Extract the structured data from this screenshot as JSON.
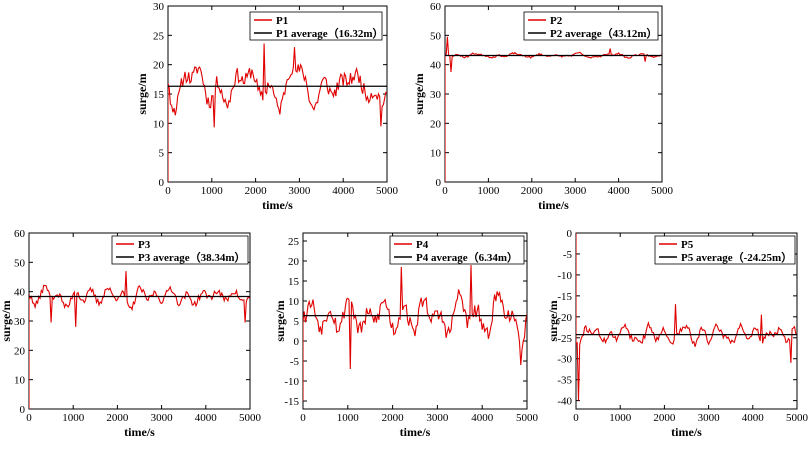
{
  "chart_data": [
    {
      "type": "line",
      "panel": "P1",
      "xlabel": "time/s",
      "ylabel": "surge/m",
      "xlim": [
        0,
        5000
      ],
      "ylim": [
        0,
        30
      ],
      "xticks": [
        0,
        1000,
        2000,
        3000,
        4000,
        5000
      ],
      "yticks": [
        0,
        5,
        10,
        15,
        20,
        25,
        30
      ],
      "legend_position": "top-right",
      "series": [
        {
          "name": "P1",
          "color": "#e00000",
          "start": 0,
          "mean": 16.32,
          "amplitude": 4.0,
          "extremes": [
            [
              2200,
              23.6
            ],
            [
              2900,
              23.0
            ],
            [
              4850,
              9.5
            ],
            [
              1050,
              9.3
            ]
          ],
          "seed": 11
        },
        {
          "name": "P1 average（16.32m）",
          "color": "#000000",
          "constant": 16.32
        }
      ]
    },
    {
      "type": "line",
      "panel": "P2",
      "xlabel": "time/s",
      "ylabel": "surge/m",
      "xlim": [
        0,
        5000
      ],
      "ylim": [
        0,
        60
      ],
      "xticks": [
        0,
        1000,
        2000,
        3000,
        4000,
        5000
      ],
      "yticks": [
        0,
        10,
        20,
        30,
        40,
        50,
        60
      ],
      "legend_position": "top-right",
      "series": [
        {
          "name": "P2",
          "color": "#e00000",
          "start": 0,
          "mean": 43.12,
          "amplitude": 0.9,
          "extremes": [
            [
              60,
              49.5
            ],
            [
              150,
              37.5
            ],
            [
              3800,
              45.5
            ],
            [
              4600,
              41.0
            ]
          ],
          "seed": 23
        },
        {
          "name": "P2 average（43.12m）",
          "color": "#000000",
          "constant": 43.12
        }
      ]
    },
    {
      "type": "line",
      "panel": "P3",
      "xlabel": "time/s",
      "ylabel": "surge/m",
      "xlim": [
        0,
        5000
      ],
      "ylim": [
        0,
        60
      ],
      "xticks": [
        0,
        1000,
        2000,
        3000,
        4000,
        5000
      ],
      "yticks": [
        0,
        10,
        20,
        30,
        40,
        50,
        60
      ],
      "legend_position": "top-right",
      "series": [
        {
          "name": "P3",
          "color": "#e00000",
          "start": 0,
          "mean": 38.34,
          "amplitude": 3.6,
          "extremes": [
            [
              2200,
              47.0
            ],
            [
              1050,
              28.0
            ],
            [
              4900,
              29.5
            ],
            [
              500,
              29.5
            ]
          ],
          "seed": 37
        },
        {
          "name": "P3 average（38.34m）",
          "color": "#000000",
          "constant": 38.34
        }
      ]
    },
    {
      "type": "line",
      "panel": "P4",
      "xlabel": "time/s",
      "ylabel": "surge/m",
      "xlim": [
        0,
        5000
      ],
      "ylim": [
        -17,
        27
      ],
      "xticks": [
        0,
        1000,
        2000,
        3000,
        4000,
        5000
      ],
      "yticks": [
        -15,
        -10,
        -5,
        0,
        5,
        10,
        15,
        20,
        25
      ],
      "legend_position": "top-right",
      "series": [
        {
          "name": "P4",
          "color": "#e00000",
          "start": -15,
          "mean": 6.34,
          "amplitude": 6.5,
          "extremes": [
            [
              3750,
              19.0
            ],
            [
              2200,
              18.5
            ],
            [
              1050,
              -7.0
            ],
            [
              4850,
              -6.0
            ]
          ],
          "seed": 53
        },
        {
          "name": "P4 average（6.34m）",
          "color": "#000000",
          "constant": 6.34
        }
      ]
    },
    {
      "type": "line",
      "panel": "P5",
      "xlabel": "time/s",
      "ylabel": "surge/m",
      "xlim": [
        0,
        5000
      ],
      "ylim": [
        -42,
        0
      ],
      "xticks": [
        0,
        1000,
        2000,
        3000,
        4000,
        5000
      ],
      "yticks": [
        -40,
        -35,
        -30,
        -25,
        -20,
        -15,
        -10,
        -5,
        0
      ],
      "legend_position": "top-right",
      "series": [
        {
          "name": "P5",
          "color": "#e00000",
          "start": 0,
          "mean": -24.25,
          "amplitude": 2.4,
          "extremes": [
            [
              60,
              -40.0
            ],
            [
              2250,
              -17.0
            ],
            [
              4200,
              -19.5
            ],
            [
              4850,
              -31.0
            ]
          ],
          "seed": 71
        },
        {
          "name": "P5 average（-24.25m）",
          "color": "#000000",
          "constant": -24.25
        }
      ]
    }
  ]
}
